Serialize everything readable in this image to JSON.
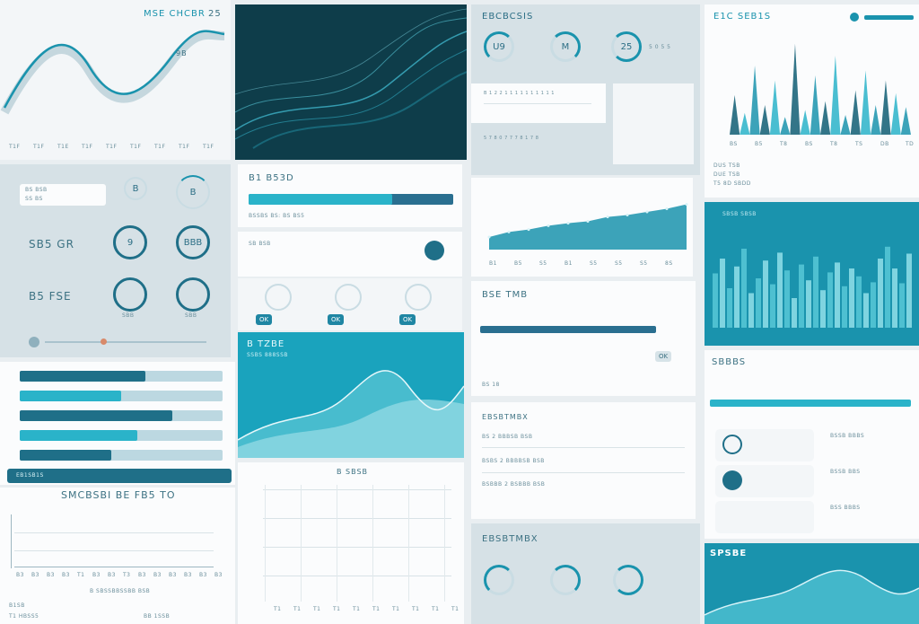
{
  "panel_a": {
    "title": "MSE CHCBR",
    "icon_label": "9B",
    "badge": "25",
    "ticks": [
      "T1F",
      "T1F",
      "T1E",
      "T1F",
      "T1F",
      "T1F",
      "T1F",
      "T1F",
      "T1F"
    ]
  },
  "panel_c": {
    "title": "EBCBCSIS",
    "rings": [
      "U9",
      "M",
      "25"
    ],
    "label": "5 0 5 5",
    "rows": [
      "B 1 2 2 1 1 1 1 1 1 1 1 1 1",
      "5  7 8 0 7 7 7 8 1 7 8"
    ]
  },
  "panel_d": {
    "title": "E1C SEB1S",
    "ticks": [
      "BS",
      "B5",
      "T8",
      "BS",
      "T8",
      "TS",
      "DB",
      "TD"
    ],
    "rows": [
      "DUS TSB",
      "DUE TSB",
      "T5 8D SBDD"
    ]
  },
  "panel_e": {
    "inp1": "BS BSB",
    "inp2": "SS BS",
    "ring_labels": [
      "B",
      "B",
      "9",
      "BBB"
    ],
    "rows": [
      "SB5 GR",
      "B5 FSE"
    ],
    "sub": [
      "SBB",
      "SBB"
    ]
  },
  "panel_f": {
    "title": "B1 B53D",
    "highlight": "B1 B53D",
    "row2": "BSSBS BS: BS BS5",
    "row3": "SB BSB"
  },
  "panel_g": {
    "ticks": [
      "B1",
      "B5",
      "S5",
      "B1",
      "S5",
      "S5",
      "S5",
      "8S"
    ]
  },
  "panel_h": {
    "title": "BSE TMB",
    "row": "BS 18"
  },
  "panel_i": {
    "title": "EB1SB1S",
    "bars": [
      62,
      50,
      75,
      58,
      45
    ]
  },
  "panel_j": {
    "title": "B TZBE",
    "sub": "SSBS 888SSB"
  },
  "panel_k": {
    "title": "SMCBSBI BE FB5 TO",
    "legend": "B SBSSBBSSBB BSB",
    "ticks": [
      "B3",
      "B3",
      "B3",
      "B3",
      "T1",
      "B3",
      "B3",
      "T3",
      "B3",
      "B3",
      "B3",
      "B3",
      "B3",
      "B3"
    ],
    "footer": [
      "B1SB",
      "T1 HBSS5",
      "BB 1SSB"
    ]
  },
  "panel_l": {
    "title": "B SBSB",
    "ticks": [
      "T1",
      "T1",
      "T1",
      "T1",
      "T1",
      "T1",
      "T1",
      "T1",
      "T1",
      "T1"
    ]
  },
  "panel_m": {
    "rows": [
      "BS  2  BBBSB BSB",
      "BSBS  2  BBBBSB BSB",
      "BSBBB  2  BSBBB BSB"
    ]
  },
  "panel_n": {
    "title": "EBSBTMBX"
  },
  "panel_o": {
    "title": "SBBBS",
    "rows": [
      "BSSB BBBS",
      "BSSB BBS",
      "BSS BBBS"
    ]
  },
  "panel_p": {
    "title": "SPSBE"
  },
  "panel_q": {
    "title": "SBSB SBSB"
  },
  "chart_data": [
    {
      "type": "bar",
      "title": "",
      "series": [
        {
          "name": "s1",
          "values": [
            40,
            22,
            70,
            30,
            55,
            18,
            92,
            25,
            60,
            34,
            80,
            20,
            45,
            65,
            30,
            55,
            42,
            28
          ]
        }
      ],
      "ylim": [
        0,
        100
      ]
    },
    {
      "type": "bar",
      "title": "",
      "series": [
        {
          "name": "s1",
          "values": [
            55,
            70,
            40,
            62,
            80,
            35,
            50,
            68,
            44,
            76,
            58,
            30,
            64,
            48,
            72,
            38,
            56,
            66,
            42,
            60,
            52,
            35,
            46,
            70,
            82,
            60,
            45,
            75
          ]
        }
      ],
      "ylim": [
        0,
        100
      ]
    },
    {
      "type": "area",
      "title": "",
      "series": [
        {
          "name": "s1",
          "values": [
            20,
            28,
            32,
            38,
            42,
            45,
            52,
            55,
            60,
            65,
            72
          ]
        }
      ],
      "ylim": [
        0,
        100
      ]
    }
  ],
  "colors": {
    "teal": "#1a93ad",
    "dark_teal": "#0e3d4a",
    "mid_teal": "#2ab3c9",
    "light_teal": "#7fd4e0",
    "panel_bg": "#f3f6f8"
  }
}
